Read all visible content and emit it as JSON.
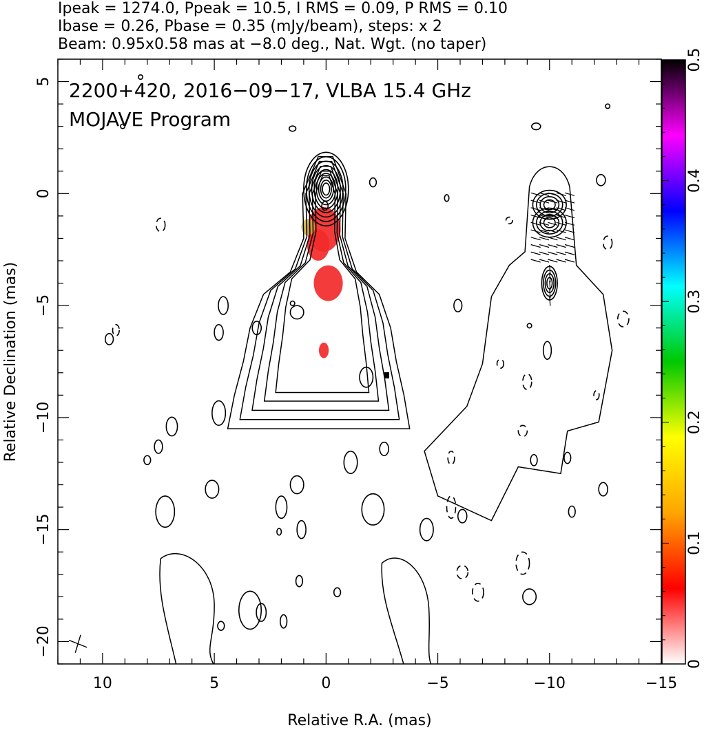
{
  "header": {
    "line1": "Ipeak = 1274.0, Ppeak = 10.5, I RMS = 0.09, P RMS = 0.10",
    "line2": "Ibase = 0.26, Pbase = 0.35 (mJy/beam), steps: x 2",
    "line3": "Beam: 0.95x0.58 mas at −8.0 deg., Nat. Wgt. (no taper)"
  },
  "chart_data": {
    "type": "heatmap",
    "annotation_line1": "2200+420, 2016−09−17, VLBA 15.4 GHz",
    "annotation_line2": "MOJAVE Program",
    "xlabel": "Relative R.A. (mas)",
    "ylabel": "Relative Declination (mas)",
    "xlim": [
      12,
      -15
    ],
    "ylim": [
      -21,
      6
    ],
    "xticks": [
      10,
      5,
      0,
      -5,
      -10,
      -15
    ],
    "xtick_labels": [
      "10",
      "5",
      "0",
      "−5",
      "−10",
      "−15"
    ],
    "yticks": [
      5,
      0,
      -5,
      -10,
      -15,
      -20
    ],
    "ytick_labels": [
      "5",
      "0",
      "−5",
      "−10",
      "−15",
      "−20"
    ],
    "colorbar": {
      "range": [
        0,
        0.5
      ],
      "ticks": [
        0,
        0.1,
        0.2,
        0.3,
        0.4,
        0.5
      ],
      "tick_labels": [
        "0",
        "0.1",
        "0.2",
        "0.3",
        "0.4",
        "0.5"
      ],
      "stops": [
        "#ffffff",
        "#ff0000",
        "#ffa500",
        "#ffff00",
        "#00c800",
        "#00ffff",
        "#0000ff",
        "#ff00ff",
        "#000000"
      ]
    },
    "core_position": [
      0,
      0
    ],
    "contours_left": {
      "peak": [
        0,
        0
      ],
      "levels": 12
    },
    "polarization_right": {
      "centers": [
        [
          -10,
          -0.5
        ],
        [
          -10,
          -1.3
        ],
        [
          -10,
          -4.0
        ]
      ]
    },
    "polarized_emission": [
      {
        "x": 0.1,
        "y": -1.6,
        "value": 0.09
      },
      {
        "x": -0.1,
        "y": -4.0,
        "value": 0.08
      },
      {
        "x": 0.1,
        "y": -7.0,
        "value": 0.08
      }
    ]
  }
}
